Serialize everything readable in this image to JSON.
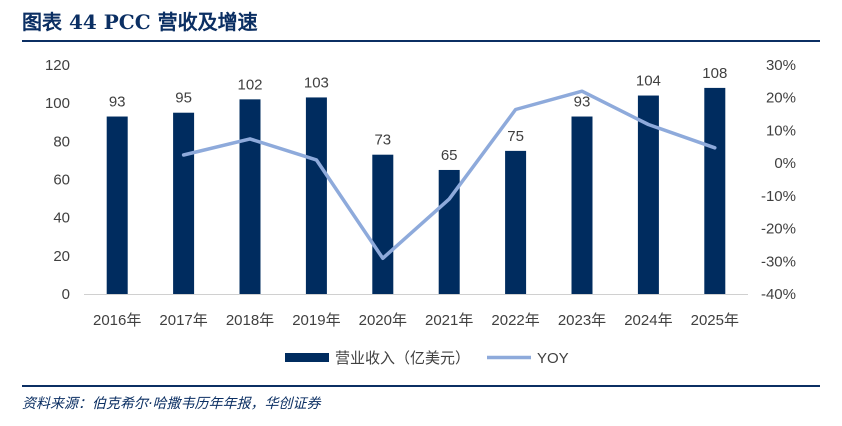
{
  "header": {
    "title": "图表 44   PCC 营收及增速"
  },
  "footer": {
    "source": "资料来源：伯克希尔·哈撒韦历年年报，华创证券"
  },
  "chart_data": {
    "type": "bar",
    "categories": [
      "2016年",
      "2017年",
      "2018年",
      "2019年",
      "2020年",
      "2021年",
      "2022年",
      "2023年",
      "2024年",
      "2025年"
    ],
    "series": [
      {
        "name": "营业收入（亿美元）",
        "type": "bar",
        "axis": "left",
        "color": "#002c5f",
        "values": [
          93,
          95,
          102,
          103,
          73,
          65,
          75,
          93,
          104,
          108
        ],
        "data_labels": [
          "93",
          "95",
          "102",
          "103",
          "73",
          "65",
          "75",
          "93",
          "104",
          "108"
        ]
      },
      {
        "name": "YOY",
        "type": "line",
        "axis": "right",
        "color": "#8eaadb",
        "values": [
          null,
          2.5,
          7.4,
          1.0,
          -29.1,
          -11.0,
          16.4,
          22.0,
          11.8,
          4.7
        ]
      }
    ],
    "y_left": {
      "ylim": [
        0,
        120
      ],
      "ticks": [
        "0",
        "20",
        "40",
        "60",
        "80",
        "100",
        "120"
      ]
    },
    "y_right": {
      "ylim": [
        -40,
        30
      ],
      "ticks": [
        "-40%",
        "-30%",
        "-20%",
        "-10%",
        "0%",
        "10%",
        "20%",
        "30%"
      ]
    },
    "legend_position": "bottom",
    "grid": false
  }
}
